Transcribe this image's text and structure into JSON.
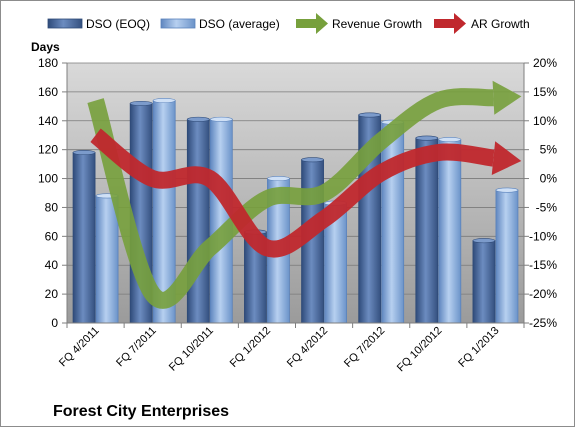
{
  "chart_data": {
    "type": "bar",
    "title": "Forest City Enterprises",
    "ylabel": "Days",
    "categories": [
      "FQ 4/2011",
      "FQ 7/2011",
      "FQ 10/2011",
      "FQ 1/2012",
      "FQ 4/2012",
      "FQ 7/2012",
      "FQ 10/2012",
      "FQ 1/2013"
    ],
    "ylim": [
      0,
      180
    ],
    "yticks": [
      0,
      20,
      40,
      60,
      80,
      100,
      120,
      140,
      160,
      180
    ],
    "y2lim": [
      -25,
      20
    ],
    "y2ticks": [
      -25,
      -20,
      -15,
      -10,
      -5,
      0,
      5,
      10,
      15,
      20
    ],
    "y2tick_labels": [
      "-25%",
      "-20%",
      "-15%",
      "-10%",
      "-5%",
      "0%",
      "5%",
      "10%",
      "15%",
      "20%"
    ],
    "legend_position": "top",
    "grid": "horizontal",
    "series": [
      {
        "name": "DSO (EOQ)",
        "type": "bar",
        "axis": "left",
        "color": "#4a6a9c",
        "values": [
          118,
          152,
          141,
          63,
          113,
          144,
          128,
          57
        ]
      },
      {
        "name": "DSO (average)",
        "type": "bar",
        "axis": "left",
        "color": "#8eb4e3",
        "values": [
          88,
          154,
          141,
          100,
          83,
          139,
          127,
          92
        ]
      },
      {
        "name": "Revenue Growth",
        "type": "line-arrow",
        "axis": "right",
        "color": "#77a03c",
        "values": [
          13.5,
          -20,
          -12,
          -3.5,
          -2.5,
          6.5,
          13.5,
          14
        ]
      },
      {
        "name": "AR Growth",
        "type": "line-arrow",
        "axis": "right",
        "color": "#c0282d",
        "values": [
          7.5,
          0,
          0,
          -12,
          -7,
          1,
          4.5,
          3.5
        ]
      }
    ]
  }
}
